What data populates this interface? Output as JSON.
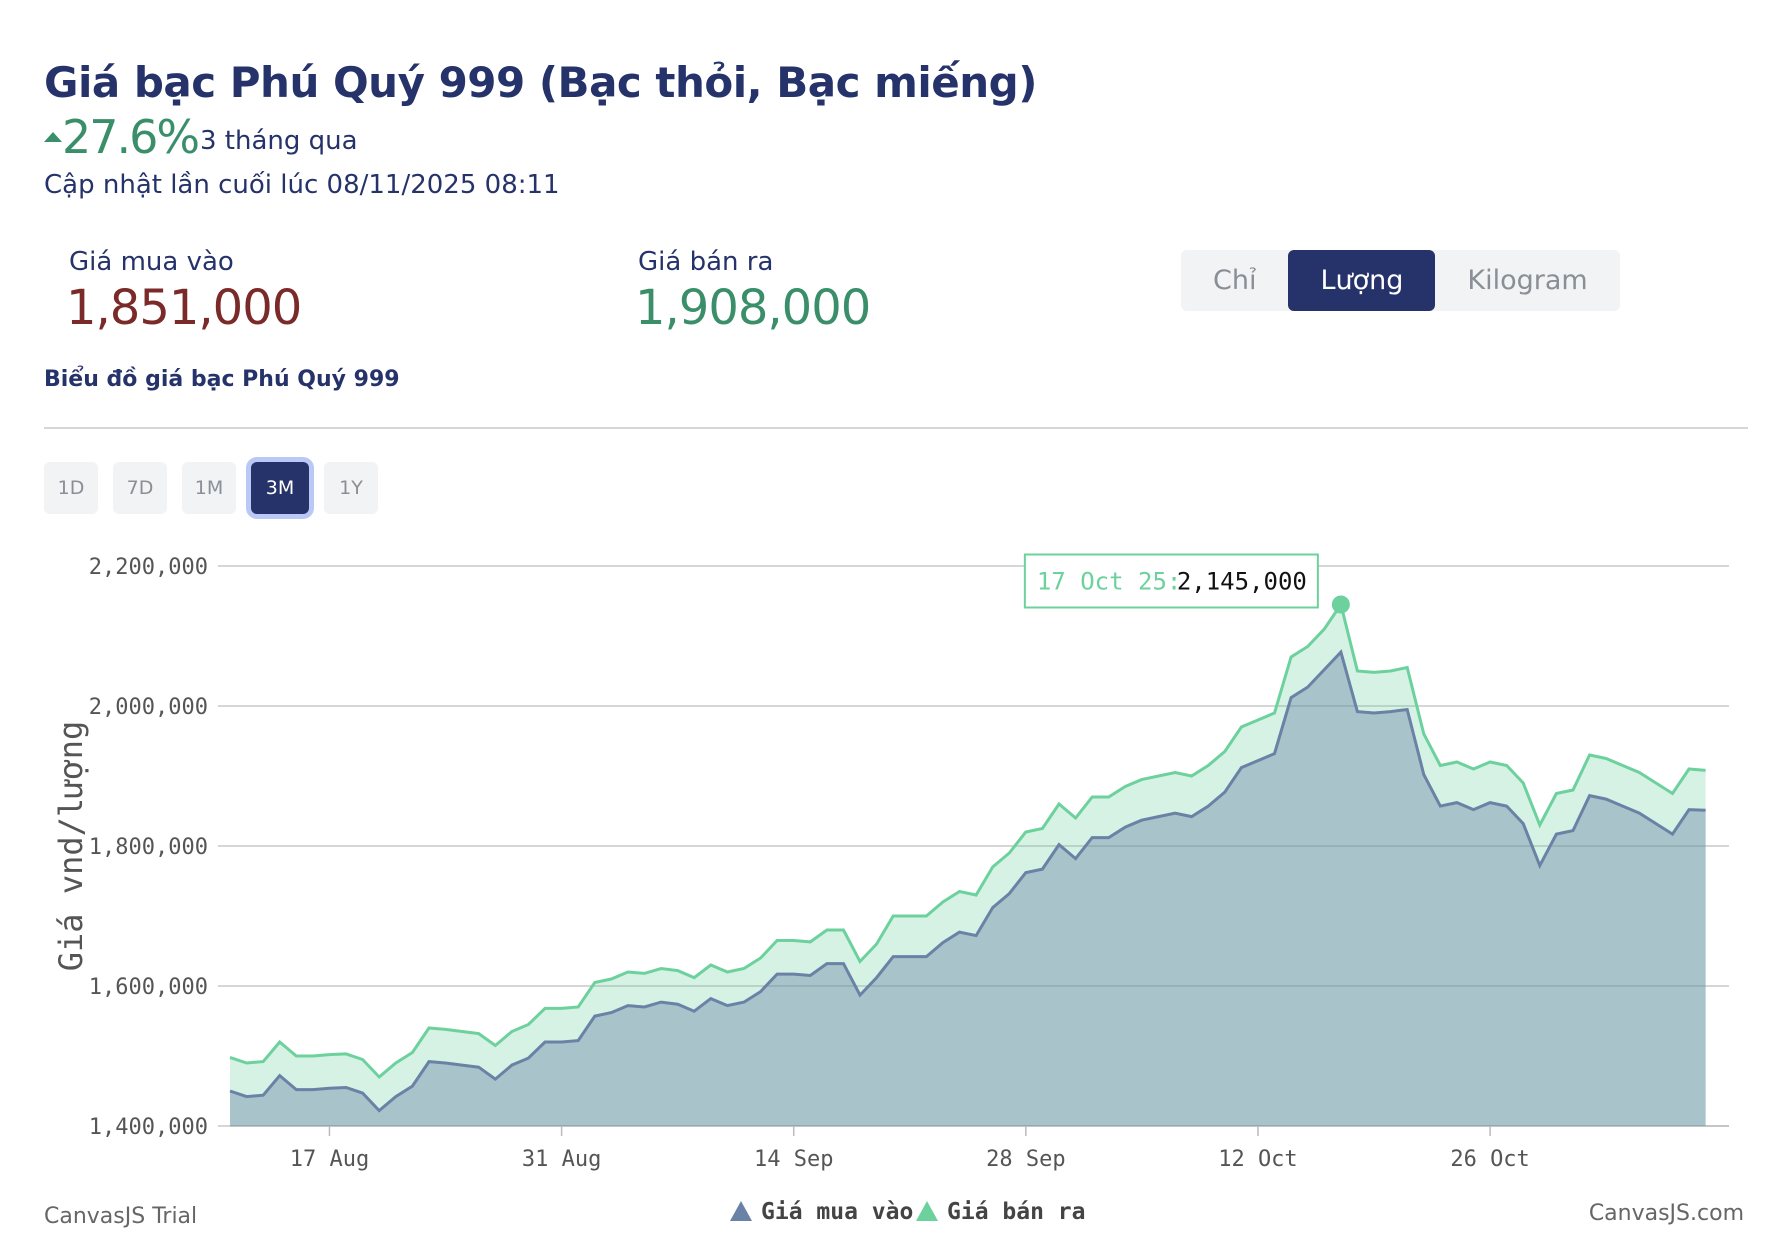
{
  "header": {
    "title": "Giá bạc Phú Quý 999 (Bạc thỏi, Bạc miếng)",
    "change": "27.6%",
    "period": "3 tháng qua",
    "updated": "Cập nhật lần cuối lúc 08/11/2025 08:11",
    "buy_label": "Giá mua vào",
    "buy_value": "1,851,000",
    "sell_label": "Giá bán ra",
    "sell_value": "1,908,000",
    "units": [
      "Chỉ",
      "Lượng",
      "Kilogram"
    ],
    "active_unit": 1,
    "subtitle": "Biểu đồ giá bạc Phú Quý 999",
    "ranges": [
      "1D",
      "7D",
      "1M",
      "3M",
      "1Y"
    ],
    "active_range": 3
  },
  "chart_data": {
    "type": "area",
    "y_label": "Giá vnd/lượng",
    "x": [
      "11 Aug",
      "12 Aug",
      "13 Aug",
      "14 Aug",
      "15 Aug",
      "16 Aug",
      "17 Aug",
      "18 Aug",
      "19 Aug",
      "20 Aug",
      "21 Aug",
      "22 Aug",
      "23 Aug",
      "24 Aug",
      "25 Aug",
      "26 Aug",
      "27 Aug",
      "28 Aug",
      "29 Aug",
      "30 Aug",
      "31 Aug",
      "1 Sep",
      "2 Sep",
      "3 Sep",
      "4 Sep",
      "5 Sep",
      "6 Sep",
      "7 Sep",
      "8 Sep",
      "9 Sep",
      "10 Sep",
      "11 Sep",
      "12 Sep",
      "13 Sep",
      "14 Sep",
      "15 Sep",
      "16 Sep",
      "17 Sep",
      "18 Sep",
      "19 Sep",
      "20 Sep",
      "21 Sep",
      "22 Sep",
      "23 Sep",
      "24 Sep",
      "25 Sep",
      "26 Sep",
      "27 Sep",
      "28 Sep",
      "29 Sep",
      "30 Sep",
      "1 Oct",
      "2 Oct",
      "3 Oct",
      "4 Oct",
      "5 Oct",
      "6 Oct",
      "7 Oct",
      "8 Oct",
      "9 Oct",
      "10 Oct",
      "11 Oct",
      "12 Oct",
      "13 Oct",
      "14 Oct",
      "15 Oct",
      "16 Oct",
      "17 Oct",
      "18 Oct",
      "19 Oct",
      "20 Oct",
      "21 Oct",
      "22 Oct",
      "23 Oct",
      "24 Oct",
      "25 Oct",
      "26 Oct",
      "27 Oct",
      "28 Oct",
      "29 Oct",
      "30 Oct",
      "31 Oct",
      "1 Nov",
      "2 Nov",
      "3 Nov",
      "4 Nov",
      "5 Nov",
      "6 Nov",
      "7 Nov",
      "8 Nov"
    ],
    "xticks": [
      "17 Aug",
      "31 Aug",
      "14 Sep",
      "28 Sep",
      "12 Oct",
      "26 Oct"
    ],
    "series": [
      {
        "name": "Giá mua vào",
        "color": "#6a82a5",
        "values": [
          1450000,
          1442000,
          1444000,
          1472000,
          1452000,
          1452000,
          1454000,
          1455000,
          1447000,
          1422000,
          1442000,
          1457000,
          1492000,
          1490000,
          1487000,
          1484000,
          1467000,
          1487000,
          1497000,
          1520000,
          1520000,
          1522000,
          1557000,
          1562000,
          1572000,
          1570000,
          1577000,
          1574000,
          1564000,
          1582000,
          1572000,
          1577000,
          1592000,
          1617000,
          1617000,
          1615000,
          1632000,
          1632000,
          1587000,
          1612000,
          1642000,
          1642000,
          1642000,
          1662000,
          1677000,
          1672000,
          1712000,
          1732000,
          1762000,
          1767000,
          1802000,
          1782000,
          1812000,
          1812000,
          1827000,
          1837000,
          1842000,
          1847000,
          1842000,
          1857000,
          1877000,
          1912000,
          1922000,
          1932000,
          2012000,
          2027000,
          2052000,
          2077000,
          1992000,
          1990000,
          1992000,
          1995000,
          1902000,
          1857000,
          1862000,
          1852000,
          1862000,
          1857000,
          1832000,
          1772000,
          1817000,
          1822000,
          1872000,
          1867000,
          1857000,
          1847000,
          1832000,
          1817000,
          1852000,
          1851000
        ]
      },
      {
        "name": "Giá bán ra",
        "color": "#6dd19e",
        "values": [
          1498000,
          1490000,
          1492000,
          1520000,
          1500000,
          1500000,
          1502000,
          1503000,
          1495000,
          1470000,
          1490000,
          1505000,
          1540000,
          1538000,
          1535000,
          1532000,
          1515000,
          1535000,
          1545000,
          1568000,
          1568000,
          1570000,
          1605000,
          1610000,
          1620000,
          1618000,
          1625000,
          1622000,
          1612000,
          1630000,
          1620000,
          1625000,
          1640000,
          1665000,
          1665000,
          1663000,
          1680000,
          1680000,
          1635000,
          1660000,
          1700000,
          1700000,
          1700000,
          1720000,
          1735000,
          1730000,
          1770000,
          1790000,
          1820000,
          1825000,
          1860000,
          1840000,
          1870000,
          1870000,
          1885000,
          1895000,
          1900000,
          1905000,
          1900000,
          1915000,
          1935000,
          1970000,
          1980000,
          1990000,
          2070000,
          2085000,
          2110000,
          2145000,
          2050000,
          2048000,
          2050000,
          2055000,
          1960000,
          1915000,
          1920000,
          1910000,
          1920000,
          1915000,
          1890000,
          1830000,
          1875000,
          1880000,
          1930000,
          1925000,
          1915000,
          1905000,
          1890000,
          1875000,
          1910000,
          1908000
        ]
      }
    ],
    "ylim": [
      1400000,
      2200000
    ],
    "yticks": [
      {
        "value": 1400000,
        "label": "1,400,000"
      },
      {
        "value": 1600000,
        "label": "1,600,000"
      },
      {
        "value": 1800000,
        "label": "1,800,000"
      },
      {
        "value": 2000000,
        "label": "2,000,000"
      },
      {
        "value": 2200000,
        "label": "2,200,000"
      }
    ],
    "grid": true,
    "tooltip": {
      "label": "17 Oct 25:",
      "value_label": "2,145,000"
    },
    "credit_left": "CanvasJS Trial",
    "credit_right": "CanvasJS.com"
  }
}
